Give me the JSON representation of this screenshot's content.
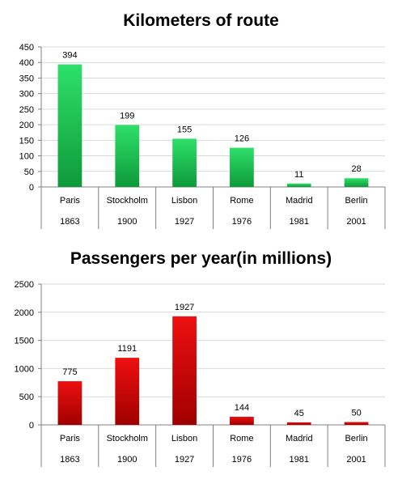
{
  "chart_data": [
    {
      "type": "bar",
      "title": "Kilometers of route",
      "categories": [
        "Paris",
        "Stockholm",
        "Lisbon",
        "Rome",
        "Madrid",
        "Berlin"
      ],
      "years": [
        "1863",
        "1900",
        "1927",
        "1976",
        "1981",
        "2001"
      ],
      "values": [
        394,
        199,
        155,
        126,
        11,
        28
      ],
      "ylim": [
        0,
        450
      ],
      "ytick_step": 50,
      "grid": true,
      "color_top": "#2ee06a",
      "color_bottom": "#0e9a3a"
    },
    {
      "type": "bar",
      "title": "Passengers per year(in millions)",
      "categories": [
        "Paris",
        "Stockholm",
        "Lisbon",
        "Rome",
        "Madrid",
        "Berlin"
      ],
      "years": [
        "1863",
        "1900",
        "1927",
        "1976",
        "1981",
        "2001"
      ],
      "values": [
        775,
        1191,
        1927,
        144,
        45,
        50
      ],
      "ylim": [
        0,
        2500
      ],
      "ytick_step": 500,
      "grid": true,
      "color_top": "#ee1010",
      "color_bottom": "#a00000"
    }
  ]
}
